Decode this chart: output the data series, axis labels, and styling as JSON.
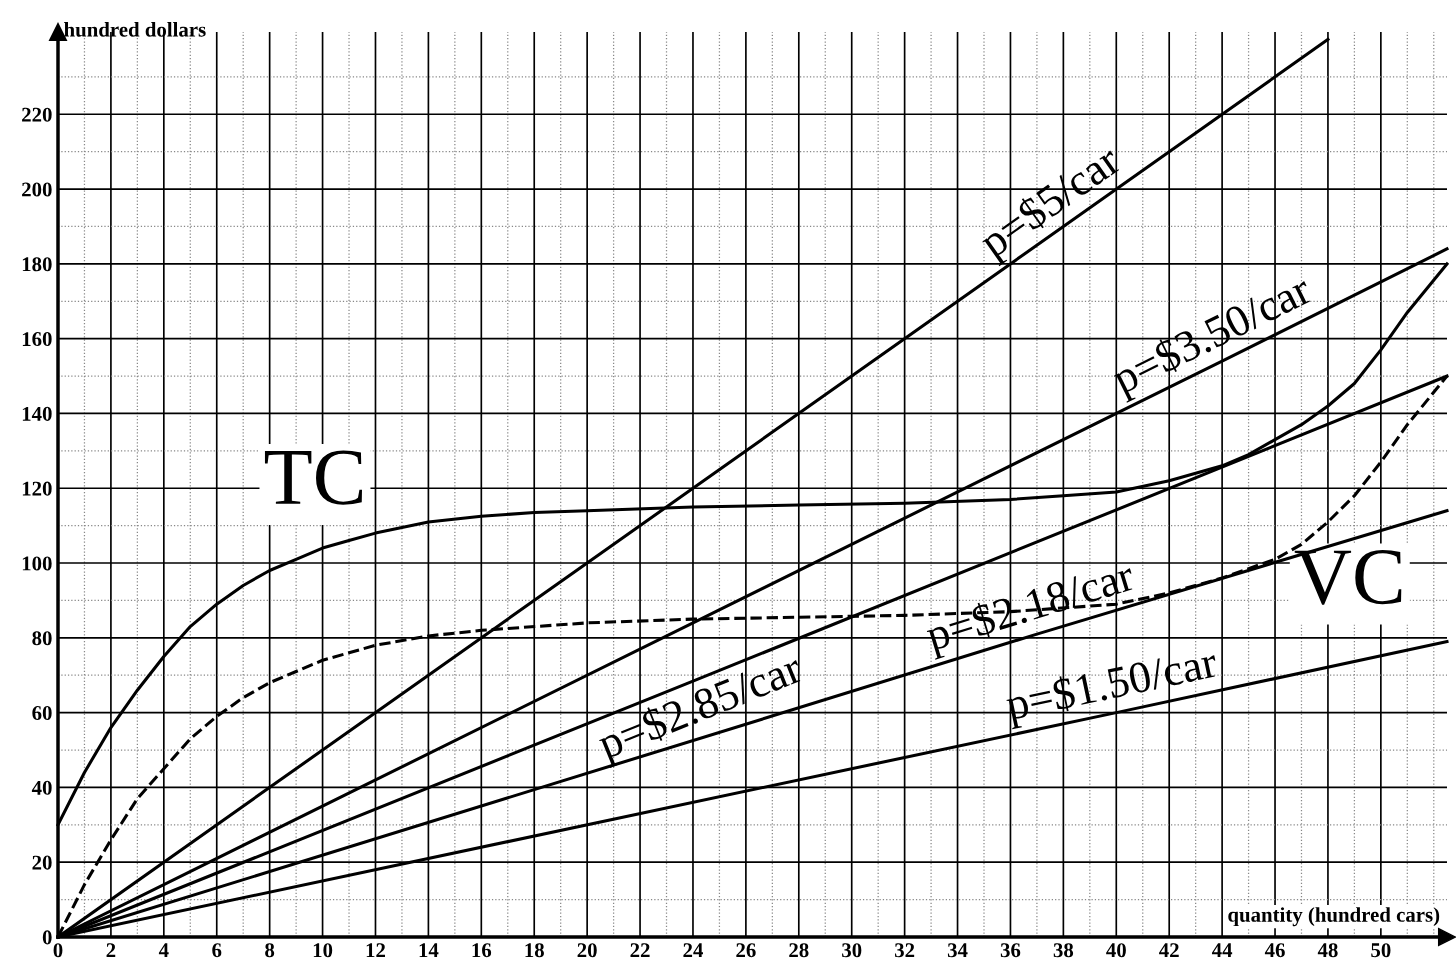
{
  "chart_data": {
    "type": "line",
    "xlabel": "quantity (hundred cars)",
    "ylabel": "hundred dollars",
    "xlim": [
      0,
      52.5
    ],
    "ylim": [
      0,
      242
    ],
    "xticks": [
      0,
      {
        "value": 1,
        "label": null
      },
      2,
      {
        "value": 3,
        "label": null
      },
      4,
      {
        "value": 5,
        "label": null
      },
      6,
      {
        "value": 7,
        "label": null
      },
      8,
      {
        "value": 9,
        "label": null
      },
      10,
      {
        "value": 11,
        "label": null
      },
      12,
      {
        "value": 13,
        "label": null
      },
      14,
      {
        "value": 15,
        "label": null
      },
      16,
      {
        "value": 17,
        "label": null
      },
      18,
      {
        "value": 19,
        "label": null
      },
      20,
      {
        "value": 21,
        "label": null
      },
      22,
      {
        "value": 23,
        "label": null
      },
      24,
      {
        "value": 25,
        "label": null
      },
      26,
      {
        "value": 27,
        "label": null
      },
      28,
      {
        "value": 29,
        "label": null
      },
      30,
      {
        "value": 31,
        "label": null
      },
      32,
      {
        "value": 33,
        "label": null
      },
      34,
      {
        "value": 35,
        "label": null
      },
      36,
      {
        "value": 37,
        "label": null
      },
      38,
      {
        "value": 39,
        "label": null
      },
      40,
      {
        "value": 41,
        "label": null
      },
      42,
      {
        "value": 43,
        "label": null
      },
      44,
      {
        "value": 45,
        "label": null
      },
      46,
      {
        "value": 47,
        "label": null
      },
      48,
      {
        "value": 49,
        "label": null
      },
      50,
      {
        "value": 51,
        "label": null
      },
      {
        "value": 52,
        "label": null
      }
    ],
    "yticks": [
      0,
      {
        "value": 10,
        "label": null
      },
      20,
      {
        "value": 30,
        "label": null
      },
      40,
      {
        "value": 50,
        "label": null
      },
      60,
      {
        "value": 70,
        "label": null
      },
      80,
      {
        "value": 90,
        "label": null
      },
      100,
      {
        "value": 110,
        "label": null
      },
      120,
      {
        "value": 130,
        "label": null
      },
      140,
      {
        "value": 150,
        "label": null
      },
      160,
      {
        "value": 170,
        "label": null
      },
      180,
      {
        "value": 190,
        "label": null
      },
      200,
      {
        "value": 210,
        "label": null
      },
      220,
      {
        "value": 230,
        "label": null
      }
    ],
    "grid": true,
    "marker": "none",
    "line_style": "solid",
    "legend": false,
    "series": [
      {
        "color": "#000000",
        "x": [
          0,
          1,
          2,
          3,
          4,
          5,
          6,
          7,
          8,
          9,
          10,
          11,
          12,
          14,
          16,
          18,
          20,
          24,
          28,
          32,
          36,
          38,
          40,
          42,
          44,
          45,
          46,
          47,
          48,
          49,
          50,
          51,
          52.5
        ],
        "values": [
          30,
          44,
          56,
          66,
          75,
          83,
          89,
          94,
          98,
          101,
          104,
          106,
          108,
          111,
          112.5,
          113.5,
          114,
          115,
          115.5,
          116,
          117,
          118,
          119,
          122,
          126,
          129,
          133,
          137,
          142,
          148,
          157,
          167,
          180
        ]
      },
      {
        "color": "#000000",
        "line_style": "dashed",
        "x": [
          0,
          1,
          2,
          3,
          4,
          5,
          6,
          7,
          8,
          9,
          10,
          11,
          12,
          14,
          16,
          20,
          24,
          28,
          32,
          36,
          40,
          42,
          44,
          46,
          47,
          48,
          49,
          50,
          51,
          52.5
        ],
        "values": [
          0,
          14,
          26,
          37,
          45,
          53,
          59,
          64,
          68,
          71,
          74,
          76,
          78,
          80.5,
          82,
          84,
          85,
          85.5,
          86,
          87,
          89,
          92,
          96,
          101,
          105,
          111,
          118,
          127,
          137,
          150
        ]
      },
      {
        "name": "p=$5/car",
        "color": "#000000",
        "x": [
          0,
          38,
          48
        ],
        "values": [
          0,
          190,
          240
        ]
      },
      {
        "name": "p=$3.50/car",
        "color": "#000000",
        "x": [
          0,
          44,
          52.5
        ],
        "values": [
          0,
          154,
          184
        ]
      },
      {
        "name": "p=$2.85/car",
        "color": "#000000",
        "x": [
          0,
          24,
          52.5
        ],
        "values": [
          0,
          68.4,
          150
        ]
      },
      {
        "name": "p=$2.18/car",
        "color": "#000000",
        "x": [
          0,
          37,
          52.5
        ],
        "values": [
          0,
          81,
          114
        ]
      },
      {
        "name": "p=$1.50/car",
        "color": "#000000",
        "x": [
          0,
          40,
          52.5
        ],
        "values": [
          0,
          60,
          79
        ]
      }
    ],
    "annotations": [
      "TC",
      "VC"
    ]
  }
}
